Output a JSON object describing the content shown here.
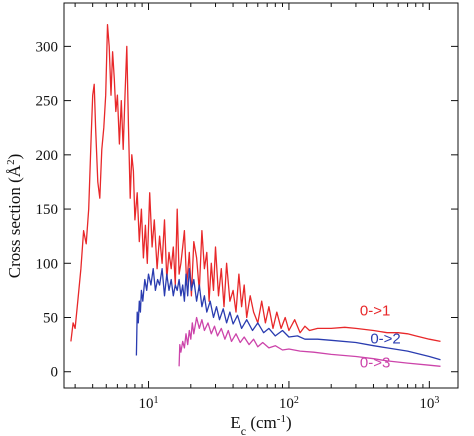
{
  "chart_data": {
    "type": "line",
    "xscale": "log",
    "xlim": [
      2.5,
      1600
    ],
    "ylim": [
      -15,
      340
    ],
    "xlabel": "E_c (cm^-1)",
    "xlabel_parts": {
      "main": "E",
      "sub": "c",
      "mid": " (cm",
      "sup": "-1",
      "end": ")"
    },
    "ylabel_parts": {
      "main": "Cross section (Å",
      "sup": "2",
      "end": ")"
    },
    "x_ticks": [
      {
        "value": 10,
        "base": "10",
        "exp": "1"
      },
      {
        "value": 100,
        "base": "10",
        "exp": "2"
      },
      {
        "value": 1000,
        "base": "10",
        "exp": "3"
      }
    ],
    "y_ticks": [
      0,
      50,
      100,
      150,
      200,
      250,
      300
    ],
    "series": [
      {
        "name": "0->1",
        "color": "#e8282a",
        "points": [
          [
            2.8,
            28
          ],
          [
            2.9,
            45
          ],
          [
            3.0,
            40
          ],
          [
            3.15,
            68
          ],
          [
            3.3,
            95
          ],
          [
            3.45,
            130
          ],
          [
            3.6,
            118
          ],
          [
            3.75,
            150
          ],
          [
            3.9,
            215
          ],
          [
            4.0,
            255
          ],
          [
            4.1,
            265
          ],
          [
            4.2,
            225
          ],
          [
            4.35,
            175
          ],
          [
            4.5,
            160
          ],
          [
            4.65,
            205
          ],
          [
            4.8,
            225
          ],
          [
            4.95,
            255
          ],
          [
            5.1,
            320
          ],
          [
            5.25,
            300
          ],
          [
            5.4,
            255
          ],
          [
            5.55,
            295
          ],
          [
            5.7,
            270
          ],
          [
            5.85,
            240
          ],
          [
            6.0,
            255
          ],
          [
            6.2,
            210
          ],
          [
            6.4,
            250
          ],
          [
            6.6,
            205
          ],
          [
            6.8,
            255
          ],
          [
            7.0,
            300
          ],
          [
            7.2,
            225
          ],
          [
            7.4,
            160
          ],
          [
            7.6,
            200
          ],
          [
            7.8,
            185
          ],
          [
            8.0,
            140
          ],
          [
            8.3,
            165
          ],
          [
            8.6,
            120
          ],
          [
            8.9,
            150
          ],
          [
            9.2,
            105
          ],
          [
            9.5,
            135
          ],
          [
            9.8,
            100
          ],
          [
            10.2,
            165
          ],
          [
            10.6,
            115
          ],
          [
            11.0,
            140
          ],
          [
            11.5,
            95
          ],
          [
            12.0,
            125
          ],
          [
            12.5,
            100
          ],
          [
            13.0,
            140
          ],
          [
            13.5,
            85
          ],
          [
            14.0,
            110
          ],
          [
            14.5,
            95
          ],
          [
            15.0,
            115
          ],
          [
            15.5,
            80
          ],
          [
            16.0,
            150
          ],
          [
            16.5,
            90
          ],
          [
            17.0,
            100
          ],
          [
            17.5,
            115
          ],
          [
            18.0,
            130
          ],
          [
            18.7,
            80
          ],
          [
            19.5,
            110
          ],
          [
            20.2,
            70
          ],
          [
            21.0,
            120
          ],
          [
            22.0,
            105
          ],
          [
            23.0,
            75
          ],
          [
            24.0,
            130
          ],
          [
            25.0,
            95
          ],
          [
            26.0,
            110
          ],
          [
            27.0,
            65
          ],
          [
            28.0,
            100
          ],
          [
            29.0,
            75
          ],
          [
            30.0,
            115
          ],
          [
            31.5,
            70
          ],
          [
            33.0,
            95
          ],
          [
            34.5,
            60
          ],
          [
            36.0,
            100
          ],
          [
            38.0,
            65
          ],
          [
            40.0,
            75
          ],
          [
            42.0,
            55
          ],
          [
            44.0,
            90
          ],
          [
            46.0,
            60
          ],
          [
            48.0,
            80
          ],
          [
            50.0,
            50
          ],
          [
            53.0,
            70
          ],
          [
            56.0,
            55
          ],
          [
            60.0,
            45
          ],
          [
            64.0,
            65
          ],
          [
            68.0,
            45
          ],
          [
            72.0,
            60
          ],
          [
            77.0,
            40
          ],
          [
            82.0,
            55
          ],
          [
            88.0,
            40
          ],
          [
            94.0,
            50
          ],
          [
            100.0,
            38
          ],
          [
            110.0,
            48
          ],
          [
            120.0,
            36
          ],
          [
            130.0,
            42
          ],
          [
            140.0,
            38
          ],
          [
            160.0,
            40
          ],
          [
            200.0,
            40
          ],
          [
            250.0,
            41
          ],
          [
            300.0,
            40
          ],
          [
            400.0,
            38
          ],
          [
            500.0,
            36
          ],
          [
            600.0,
            36
          ],
          [
            700.0,
            35
          ],
          [
            800.0,
            33
          ],
          [
            1000.0,
            30
          ],
          [
            1200.0,
            28
          ]
        ]
      },
      {
        "name": "0->2",
        "color": "#2a3cb0",
        "points": [
          [
            8.2,
            15
          ],
          [
            8.3,
            55
          ],
          [
            8.45,
            45
          ],
          [
            8.6,
            65
          ],
          [
            8.75,
            55
          ],
          [
            8.9,
            75
          ],
          [
            9.1,
            65
          ],
          [
            9.4,
            85
          ],
          [
            9.7,
            75
          ],
          [
            10.0,
            90
          ],
          [
            10.4,
            80
          ],
          [
            10.8,
            95
          ],
          [
            11.2,
            75
          ],
          [
            11.6,
            85
          ],
          [
            12.0,
            80
          ],
          [
            12.5,
            95
          ],
          [
            13.0,
            70
          ],
          [
            13.5,
            90
          ],
          [
            14.0,
            75
          ],
          [
            14.5,
            85
          ],
          [
            15.0,
            70
          ],
          [
            15.5,
            80
          ],
          [
            16.0,
            75
          ],
          [
            16.5,
            85
          ],
          [
            17.0,
            70
          ],
          [
            17.5,
            80
          ],
          [
            18.0,
            65
          ],
          [
            18.5,
            90
          ],
          [
            19.0,
            70
          ],
          [
            19.5,
            95
          ],
          [
            20.2,
            75
          ],
          [
            21.0,
            85
          ],
          [
            22.0,
            65
          ],
          [
            23.0,
            80
          ],
          [
            24.0,
            60
          ],
          [
            25.0,
            70
          ],
          [
            26.0,
            55
          ],
          [
            27.5,
            65
          ],
          [
            29.0,
            50
          ],
          [
            30.5,
            60
          ],
          [
            32.0,
            48
          ],
          [
            34.0,
            58
          ],
          [
            36.0,
            45
          ],
          [
            38.0,
            55
          ],
          [
            40.0,
            44
          ],
          [
            43.0,
            52
          ],
          [
            46.0,
            40
          ],
          [
            50.0,
            48
          ],
          [
            55.0,
            38
          ],
          [
            60.0,
            45
          ],
          [
            66.0,
            36
          ],
          [
            72.0,
            40
          ],
          [
            80.0,
            33
          ],
          [
            90.0,
            38
          ],
          [
            100.0,
            32
          ],
          [
            115.0,
            33
          ],
          [
            130.0,
            30
          ],
          [
            160.0,
            30
          ],
          [
            200.0,
            29
          ],
          [
            300.0,
            27
          ],
          [
            400.0,
            24
          ],
          [
            500.0,
            22
          ],
          [
            700.0,
            19
          ],
          [
            1000.0,
            14
          ],
          [
            1200.0,
            11
          ]
        ]
      },
      {
        "name": "0->3",
        "color": "#cc44aa",
        "points": [
          [
            16.5,
            5
          ],
          [
            16.7,
            25
          ],
          [
            17.0,
            18
          ],
          [
            17.5,
            28
          ],
          [
            18.0,
            22
          ],
          [
            18.5,
            35
          ],
          [
            19.0,
            25
          ],
          [
            19.5,
            38
          ],
          [
            20.0,
            30
          ],
          [
            20.5,
            45
          ],
          [
            21.0,
            35
          ],
          [
            22.0,
            50
          ],
          [
            23.0,
            40
          ],
          [
            24.0,
            48
          ],
          [
            25.0,
            38
          ],
          [
            26.5,
            45
          ],
          [
            28.0,
            35
          ],
          [
            29.5,
            42
          ],
          [
            31.0,
            33
          ],
          [
            33.0,
            40
          ],
          [
            35.0,
            30
          ],
          [
            37.0,
            38
          ],
          [
            39.0,
            28
          ],
          [
            42.0,
            35
          ],
          [
            45.0,
            27
          ],
          [
            48.0,
            32
          ],
          [
            52.0,
            25
          ],
          [
            56.0,
            30
          ],
          [
            60.0,
            23
          ],
          [
            65.0,
            27
          ],
          [
            72.0,
            22
          ],
          [
            80.0,
            24
          ],
          [
            90.0,
            20
          ],
          [
            100.0,
            21
          ],
          [
            120.0,
            19
          ],
          [
            150.0,
            18
          ],
          [
            200.0,
            16
          ],
          [
            300.0,
            14
          ],
          [
            400.0,
            12
          ],
          [
            500.0,
            10
          ],
          [
            700.0,
            8
          ],
          [
            1000.0,
            6
          ],
          [
            1200.0,
            5
          ]
        ]
      }
    ]
  },
  "annotations": [
    {
      "text": "0->1",
      "series": 0,
      "x": 320,
      "y": 52
    },
    {
      "text": "0->2",
      "series": 1,
      "x": 380,
      "y": 26
    },
    {
      "text": "0->3",
      "series": 2,
      "x": 320,
      "y": 4
    }
  ]
}
